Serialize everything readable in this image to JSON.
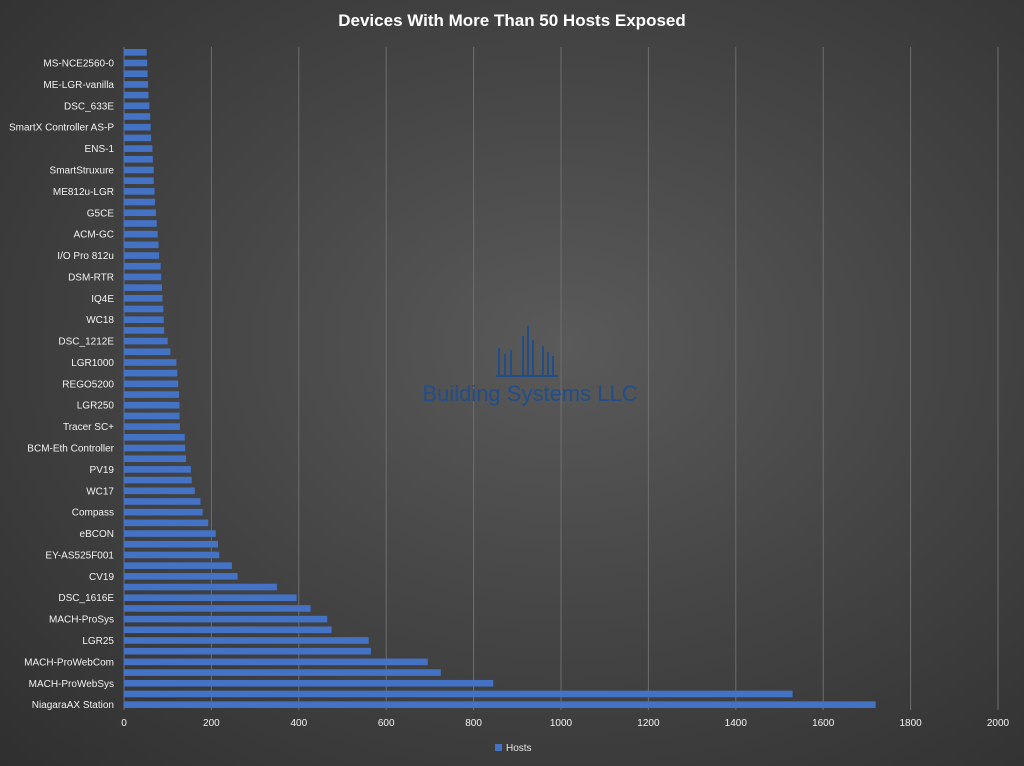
{
  "chart_data": {
    "type": "bar",
    "orientation": "horizontal",
    "title": "Devices With More Than 50 Hosts Exposed",
    "xlim": [
      0,
      2000
    ],
    "xticks": [
      0,
      200,
      400,
      600,
      800,
      1000,
      1200,
      1400,
      1600,
      1800,
      2000
    ],
    "grid": true,
    "legend_position": "bottom",
    "colors": {
      "bar": "#4472c4",
      "grid": "#6e6e6e"
    },
    "series": [
      {
        "name": "Hosts",
        "data": [
          {
            "label": "NiagaraAX Station",
            "value": 1720
          },
          {
            "label": "",
            "value": 1530
          },
          {
            "label": "MACH-ProWebSys",
            "value": 845
          },
          {
            "label": "",
            "value": 725
          },
          {
            "label": "MACH-ProWebCom",
            "value": 695
          },
          {
            "label": "",
            "value": 565
          },
          {
            "label": "LGR25",
            "value": 560
          },
          {
            "label": "",
            "value": 475
          },
          {
            "label": "MACH-ProSys",
            "value": 465
          },
          {
            "label": "",
            "value": 427
          },
          {
            "label": "DSC_1616E",
            "value": 395
          },
          {
            "label": "",
            "value": 350
          },
          {
            "label": "CV19",
            "value": 260
          },
          {
            "label": "",
            "value": 247
          },
          {
            "label": "EY-AS525F001",
            "value": 218
          },
          {
            "label": "",
            "value": 215
          },
          {
            "label": "eBCON",
            "value": 210
          },
          {
            "label": "",
            "value": 193
          },
          {
            "label": "Compass",
            "value": 180
          },
          {
            "label": "",
            "value": 175
          },
          {
            "label": "WC17",
            "value": 162
          },
          {
            "label": "",
            "value": 155
          },
          {
            "label": "PV19",
            "value": 153
          },
          {
            "label": "",
            "value": 142
          },
          {
            "label": "BCM-Eth Controller",
            "value": 140
          },
          {
            "label": "",
            "value": 139
          },
          {
            "label": "Tracer SC+",
            "value": 128
          },
          {
            "label": "",
            "value": 127
          },
          {
            "label": "LGR250",
            "value": 127
          },
          {
            "label": "",
            "value": 126
          },
          {
            "label": "REGO5200",
            "value": 124
          },
          {
            "label": "",
            "value": 122
          },
          {
            "label": "LGR1000",
            "value": 120
          },
          {
            "label": "",
            "value": 106
          },
          {
            "label": "DSC_1212E",
            "value": 100
          },
          {
            "label": "",
            "value": 92
          },
          {
            "label": "WC18",
            "value": 91
          },
          {
            "label": "",
            "value": 90
          },
          {
            "label": "IQ4E",
            "value": 88
          },
          {
            "label": "",
            "value": 87
          },
          {
            "label": "DSM-RTR",
            "value": 85
          },
          {
            "label": "",
            "value": 84
          },
          {
            "label": "I/O Pro 812u",
            "value": 80
          },
          {
            "label": "",
            "value": 79
          },
          {
            "label": "ACM-GC",
            "value": 77
          },
          {
            "label": "",
            "value": 75
          },
          {
            "label": "G5CE",
            "value": 73
          },
          {
            "label": "",
            "value": 71
          },
          {
            "label": "ME812u-LGR",
            "value": 70
          },
          {
            "label": "",
            "value": 68
          },
          {
            "label": "SmartStruxure",
            "value": 68
          },
          {
            "label": "",
            "value": 66
          },
          {
            "label": "ENS-1",
            "value": 65
          },
          {
            "label": "",
            "value": 62
          },
          {
            "label": "SmartX Controller AS-P",
            "value": 61
          },
          {
            "label": "",
            "value": 60
          },
          {
            "label": "DSC_633E",
            "value": 58
          },
          {
            "label": "",
            "value": 56
          },
          {
            "label": "ME-LGR-vanilla",
            "value": 55
          },
          {
            "label": "",
            "value": 54
          },
          {
            "label": "MS-NCE2560-0",
            "value": 53
          },
          {
            "label": "",
            "value": 52
          }
        ]
      }
    ]
  },
  "watermark": {
    "text": "Building Systems LLC",
    "color": "#1f4e8c"
  }
}
